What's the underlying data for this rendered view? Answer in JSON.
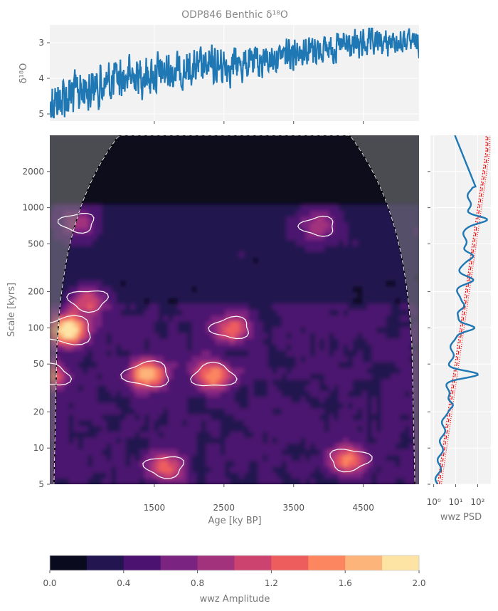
{
  "chart_data": [
    {
      "type": "line",
      "title": "ODP846 Benthic δ¹⁸O",
      "ylabel": "δ¹⁸O",
      "ylim": [
        5.2,
        2.5
      ],
      "yticks": [
        "3",
        "4",
        "5"
      ],
      "grid": true,
      "series_color": "#1f77b4",
      "series": [
        {
          "x": [
            0,
            250,
            500,
            750,
            1000,
            1250,
            1500,
            1750,
            2000,
            2250,
            2500,
            2750,
            3000,
            3250,
            3500,
            3750,
            4000,
            4250,
            4500,
            4750,
            5000,
            5300
          ],
          "values": [
            4.7,
            4.5,
            4.3,
            4.2,
            4.0,
            3.9,
            3.9,
            3.8,
            3.75,
            3.7,
            3.65,
            3.6,
            3.55,
            3.4,
            3.2,
            3.2,
            3.15,
            3.1,
            3.05,
            3.0,
            3.0,
            3.0
          ]
        }
      ]
    },
    {
      "type": "heatmap",
      "xlabel": "Age [ky BP]",
      "ylabel": "Scale [kyrs]",
      "xlim": [
        0,
        5300
      ],
      "ylim": [
        5,
        4000
      ],
      "yscale": "log",
      "xticks": [
        "1500",
        "2500",
        "3500",
        "4500"
      ],
      "yticks": [
        "5",
        "10",
        "20",
        "50",
        "100",
        "200",
        "500",
        "1000",
        "2000"
      ],
      "hotspots": [
        {
          "x": 250,
          "y": 95,
          "amplitude": 1.8
        },
        {
          "x": 1400,
          "y": 41,
          "amplitude": 1.4
        },
        {
          "x": 2350,
          "y": 40,
          "amplitude": 1.2
        },
        {
          "x": 550,
          "y": 170,
          "amplitude": 0.9
        },
        {
          "x": 2600,
          "y": 100,
          "amplitude": 0.9
        },
        {
          "x": 1650,
          "y": 7,
          "amplitude": 0.9
        },
        {
          "x": 4300,
          "y": 8,
          "amplitude": 1.0
        },
        {
          "x": 0,
          "y": 40,
          "amplitude": 1.0
        },
        {
          "x": 3850,
          "y": 700,
          "amplitude": 0.6
        },
        {
          "x": 400,
          "y": 750,
          "amplitude": 0.6
        }
      ],
      "colormap": [
        "#0a0a1e",
        "#231550",
        "#4c1270",
        "#7a2380",
        "#a3327d",
        "#cc4370",
        "#ee5d5d",
        "#fb8660",
        "#fdb47a",
        "#fde4a5"
      ],
      "cone_color": "#808080"
    },
    {
      "type": "line",
      "xlabel": "wwz PSD",
      "xscale": "log",
      "xticks": [
        "10⁰",
        "10¹",
        "10²"
      ],
      "series": [
        {
          "name": "",
          "color": "#1f77b4"
        },
        {
          "name": "",
          "color": "#ff0000"
        }
      ]
    },
    {
      "type": "colorbar",
      "label": "wwz Amplitude",
      "range": [
        0.0,
        2.0
      ],
      "ticks": [
        "0.0",
        "0.4",
        "0.8",
        "1.2",
        "1.6",
        "2.0"
      ],
      "colors": [
        "#0a0a1e",
        "#231550",
        "#4c1270",
        "#7a2380",
        "#a3327d",
        "#cc4370",
        "#ee5d5d",
        "#fb8660",
        "#fdb47a",
        "#fde4a5"
      ]
    }
  ]
}
